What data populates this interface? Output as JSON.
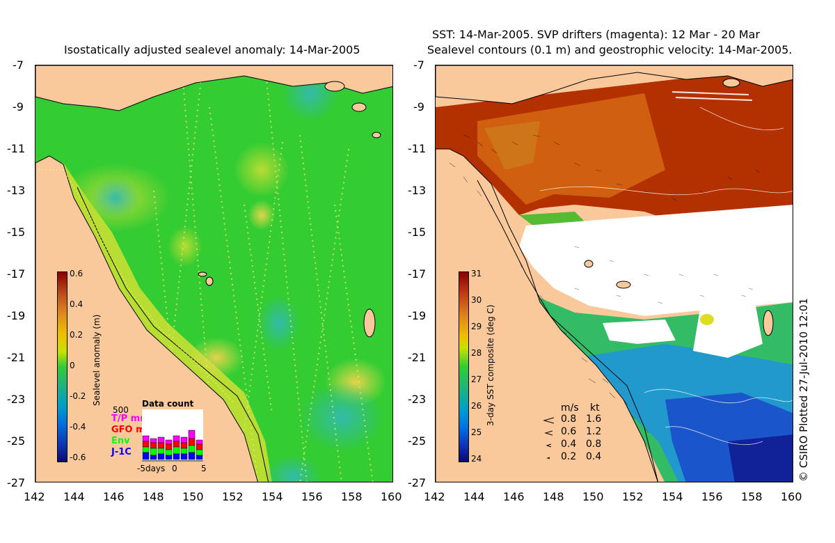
{
  "left_panel": {
    "title": "Isostatically adjusted sealevel anomaly: 14-Mar-2005",
    "colorbar": {
      "label": "Sealevel anomaly (m)",
      "ticks": [
        "0.6",
        "0.4",
        "0.2",
        "0",
        "-0.2",
        "-0.4",
        "-0.6"
      ],
      "range": [
        -0.6,
        0.6
      ]
    },
    "data_count": {
      "title": "Data count",
      "scale_value": "500",
      "entries": [
        {
          "label": "T/P mm",
          "color": "#ff00ff"
        },
        {
          "label": "GFO mm",
          "color": "#ff0000"
        },
        {
          "label": "Env",
          "color": "#00ff00"
        },
        {
          "label": "J-1C",
          "color": "#0000ff"
        }
      ],
      "axis_labels": [
        "-5days",
        "0",
        "5"
      ]
    }
  },
  "right_panel": {
    "title_line1": "SST: 14-Mar-2005. SVP drifters (magenta): 12 Mar - 20 Mar",
    "title_line2": "Sealevel contours (0.1 m) and geostrophic velocity: 14-Mar-2005.",
    "colorbar": {
      "label": "3-day SST composite (deg C)",
      "ticks": [
        "31",
        "30",
        "29",
        "28",
        "27",
        "26",
        "25",
        "24"
      ],
      "range": [
        24,
        31
      ]
    },
    "velocity_legend": {
      "header_ms": "m/s",
      "header_kt": "kt",
      "rows": [
        {
          "ms": "0.8",
          "kt": "1.6"
        },
        {
          "ms": "0.6",
          "kt": "1.2"
        },
        {
          "ms": "0.4",
          "kt": "0.8"
        },
        {
          "ms": "0.2",
          "kt": "0.4"
        }
      ]
    },
    "credit": "© CSIRO Plotted 27-Jul-2010 12:01"
  },
  "axes": {
    "y_ticks": [
      "-7",
      "-9",
      "-11",
      "-13",
      "-15",
      "-17",
      "-19",
      "-21",
      "-23",
      "-25",
      "-27"
    ],
    "x_ticks": [
      "142",
      "144",
      "146",
      "148",
      "150",
      "152",
      "154",
      "156",
      "158",
      "160"
    ],
    "lon_range": [
      142,
      160
    ],
    "lat_range": [
      -27,
      -7
    ]
  },
  "colors": {
    "land": "#f9c99b",
    "sla_mean": "#33cc33",
    "sst_warm": "#b33000",
    "sst_cool": "#2299cc",
    "cloud": "#ffffff"
  }
}
